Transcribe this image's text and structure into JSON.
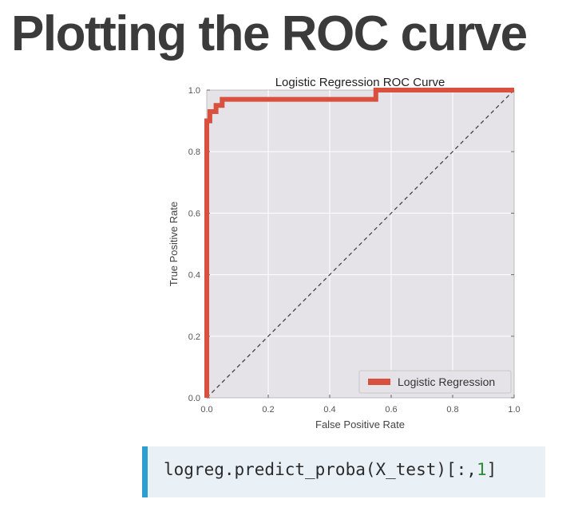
{
  "slide": {
    "title": "Plotting the ROC curve"
  },
  "code": {
    "prefix": "logreg.predict_proba(X_test)[:,",
    "number": "1",
    "suffix": "]"
  },
  "colors": {
    "roc_line": "#d9503f",
    "plot_background": "#e5e3e8",
    "grid": "#ffffff",
    "diagonal": "#444444",
    "code_accent": "#2a9fd0",
    "code_background": "#e9f1f7"
  },
  "chart_data": {
    "type": "line",
    "title": "Logistic Regression ROC Curve",
    "xlabel": "False Positive Rate",
    "ylabel": "True Positive Rate",
    "xlim": [
      0.0,
      1.0
    ],
    "ylim": [
      0.0,
      1.0
    ],
    "xticks": [
      "0.0",
      "0.2",
      "0.4",
      "0.6",
      "0.8",
      "1.0"
    ],
    "yticks": [
      "0.0",
      "0.2",
      "0.4",
      "0.6",
      "0.8",
      "1.0"
    ],
    "grid": true,
    "legend_position": "lower-right",
    "series": [
      {
        "name": "Logistic Regression",
        "x": [
          0.0,
          0.0,
          0.0,
          0.01,
          0.01,
          0.03,
          0.03,
          0.05,
          0.05,
          0.55,
          0.55,
          1.0
        ],
        "y": [
          0.0,
          0.85,
          0.9,
          0.9,
          0.93,
          0.93,
          0.95,
          0.95,
          0.97,
          0.97,
          1.0,
          1.0
        ]
      }
    ],
    "reference_line": {
      "style": "dashed",
      "x": [
        0.0,
        1.0
      ],
      "y": [
        0.0,
        1.0
      ]
    }
  }
}
